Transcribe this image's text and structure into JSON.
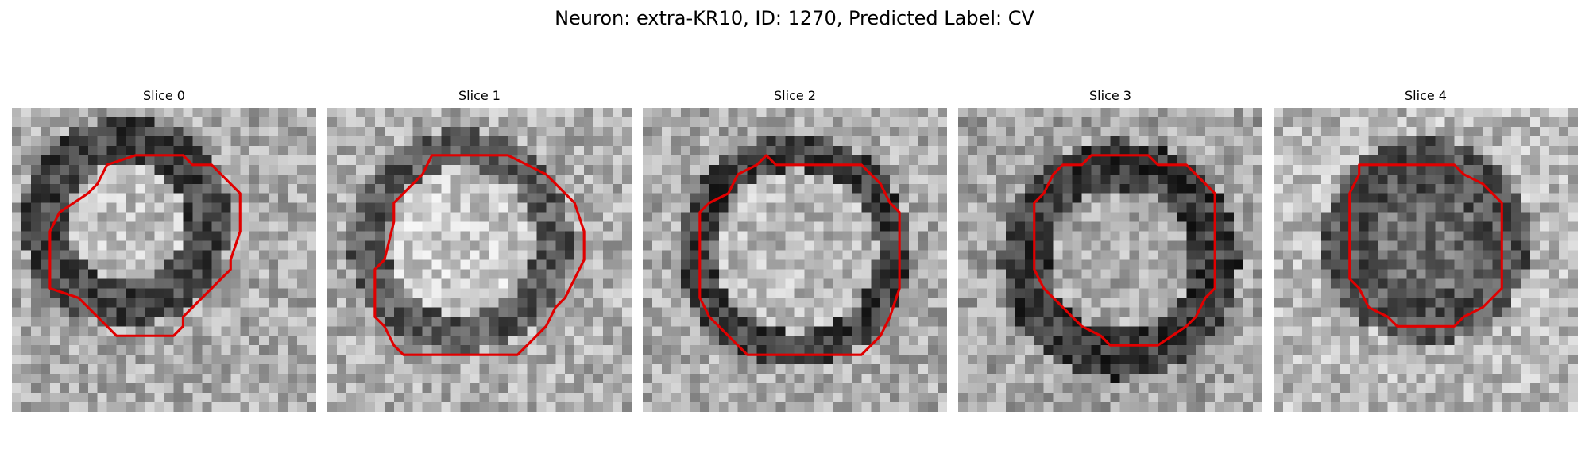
{
  "figure": {
    "title": "Neuron: extra-KR10, ID: 1270, Predicted Label: CV"
  },
  "panels": [
    {
      "title": "Slice 0",
      "image_icon": "grayscale-microscopy-slice",
      "outline_icon": "red-cell-contour-outline"
    },
    {
      "title": "Slice 1",
      "image_icon": "grayscale-microscopy-slice",
      "outline_icon": "red-cell-contour-outline"
    },
    {
      "title": "Slice 2",
      "image_icon": "grayscale-microscopy-slice",
      "outline_icon": "red-cell-contour-outline"
    },
    {
      "title": "Slice 3",
      "image_icon": "grayscale-microscopy-slice",
      "outline_icon": "red-cell-contour-outline"
    },
    {
      "title": "Slice 4",
      "image_icon": "grayscale-microscopy-slice",
      "outline_icon": "red-cell-contour-outline"
    }
  ],
  "colors": {
    "contour": "#e00000",
    "background": "#ffffff"
  }
}
